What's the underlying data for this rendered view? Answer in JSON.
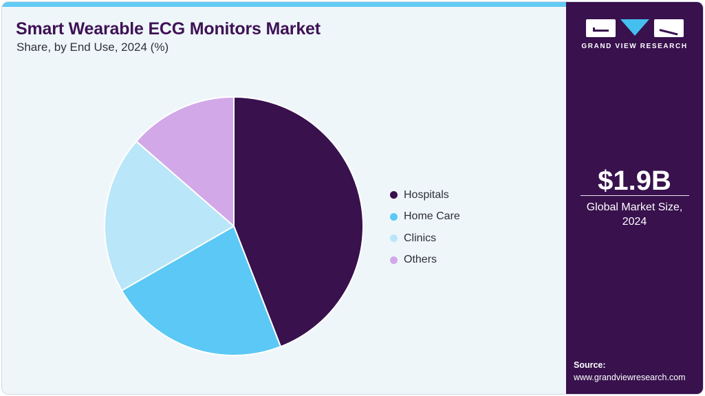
{
  "header": {
    "title": "Smart Wearable ECG Monitors Market",
    "subtitle": "Share, by End Use, 2024 (%)"
  },
  "chart_data": {
    "type": "pie",
    "title": "Smart Wearable ECG Monitors Market Share, by End Use, 2024 (%)",
    "unit": "%",
    "categories": [
      "Hospitals",
      "Home Care",
      "Clinics",
      "Others"
    ],
    "values": [
      44.1,
      22.6,
      19.7,
      13.6
    ],
    "colors": [
      "#38114d",
      "#5bc8f5",
      "#b9e6f8",
      "#d2a8e9"
    ],
    "start_angle_deg": 0,
    "direction": "clockwise",
    "legend_position": "right",
    "data_labels_shown": false
  },
  "sidebar": {
    "logo_text": "GRAND VIEW RESEARCH",
    "market_size_value": "$1.9B",
    "market_size_caption": "Global Market Size, 2024",
    "source_label": "Source:",
    "source_url": "www.grandviewresearch.com"
  },
  "colors": {
    "accent_bar": "#62caf3",
    "sidebar_bg": "#38114d",
    "main_bg": "#eff6fa",
    "title_text": "#3e1254",
    "body_text": "#2e2e38",
    "logo_triangle": "#45bfee"
  }
}
